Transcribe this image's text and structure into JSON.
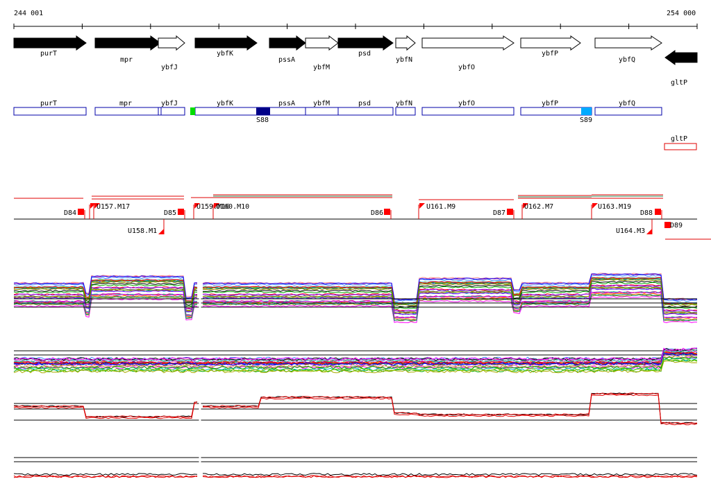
{
  "coords": {
    "start_label": "244 001",
    "end_label": "254 000"
  },
  "colors": {
    "gene_fill_forward_known": "#000000",
    "gene_box": "#0000aa",
    "marker": "#ff0000",
    "track_black": "#000000",
    "track_red": "#e00000",
    "s_green": "#00dd00",
    "s_navy": "#000088",
    "s_cyan": "#00aaff"
  },
  "genes": [
    {
      "name": "purT",
      "strand": "+",
      "filled": true
    },
    {
      "name": "mpr",
      "strand": "+",
      "filled": true
    },
    {
      "name": "ybfJ",
      "strand": "+",
      "filled": false
    },
    {
      "name": "ybfK",
      "strand": "+",
      "filled": true
    },
    {
      "name": "pssA",
      "strand": "+",
      "filled": true
    },
    {
      "name": "ybfM",
      "strand": "+",
      "filled": false
    },
    {
      "name": "psd",
      "strand": "+",
      "filled": true
    },
    {
      "name": "ybfN",
      "strand": "+",
      "filled": false
    },
    {
      "name": "ybfO",
      "strand": "+",
      "filled": false
    },
    {
      "name": "ybfP",
      "strand": "+",
      "filled": false
    },
    {
      "name": "ybfQ",
      "strand": "+",
      "filled": false
    },
    {
      "name": "gltP",
      "strand": "-",
      "filled": true
    }
  ],
  "operon_boxes": [
    "purT",
    "mpr",
    "ybfJ",
    "ybfK",
    "pssA",
    "ybfM",
    "psd",
    "ybfN",
    "ybfO",
    "ybfP",
    "ybfQ"
  ],
  "operon_reverse": "gltP",
  "s_labels": [
    "S88",
    "S89"
  ],
  "d_markers": [
    "D84",
    "D85",
    "D86",
    "D87",
    "D88",
    "D89"
  ],
  "u_markers": [
    "U157.M17",
    "U158.M1",
    "U159.M16",
    "U160.M10",
    "U161.M9",
    "U162.M7",
    "U163.M19",
    "U164.M3"
  ]
}
